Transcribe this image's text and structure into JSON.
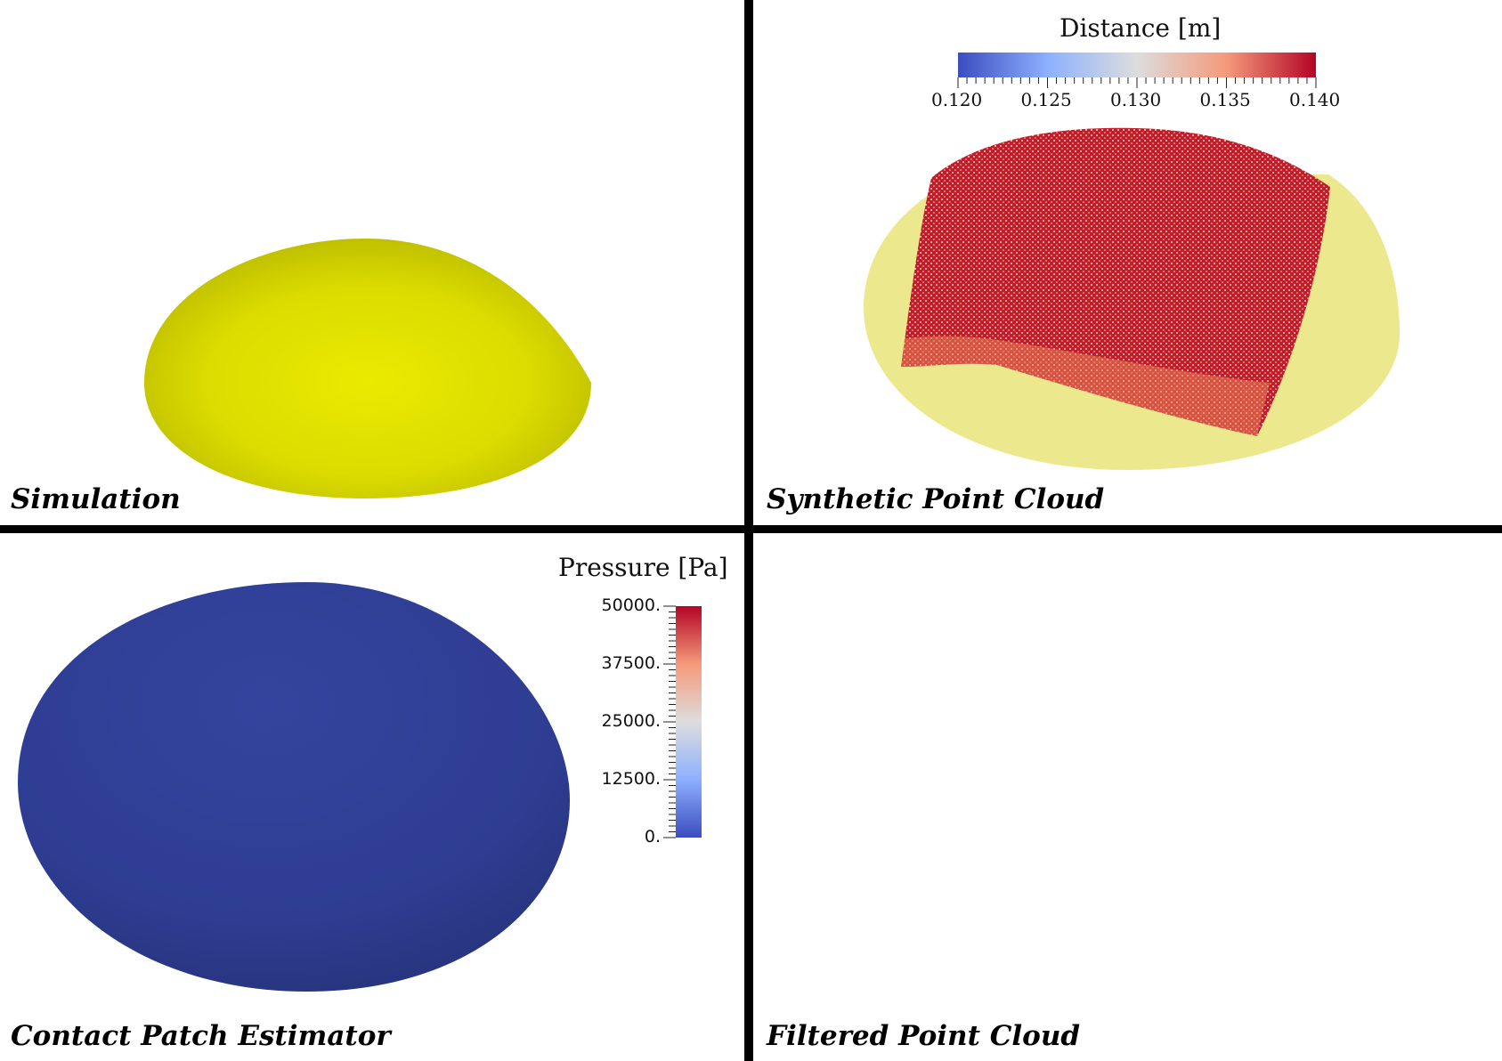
{
  "views": {
    "simulation": {
      "title": "Simulation"
    },
    "synthetic_point_cloud": {
      "title": "Synthetic Point Cloud"
    },
    "contact_patch_estimator": {
      "title": "Contact Patch Estimator"
    },
    "filtered_point_cloud": {
      "title": "Filtered Point Cloud"
    }
  },
  "distance_colorbar": {
    "title": "Distance [m]",
    "min": 0.12,
    "max": 0.14,
    "tick_labels": [
      "0.120",
      "0.125",
      "0.130",
      "0.135",
      "0.140"
    ],
    "colors": [
      "#3b4cc0",
      "#dddddd",
      "#b40426"
    ]
  },
  "pressure_colorbar": {
    "title": "Pressure [Pa]",
    "min": 0,
    "max": 50000,
    "tick_labels": [
      "50000.",
      "37500.",
      "25000.",
      "12500.",
      "0."
    ],
    "colors": [
      "#3b4cc0",
      "#dddddd",
      "#b40426"
    ]
  },
  "colors": {
    "divider": "#000000",
    "simulation_surface": "#e6e600",
    "translucent_surface": "#e8e47a",
    "contact_patch_surface": "#2f3e9e",
    "point_cloud_high": "#c0102a",
    "point_cloud_low": "#e8845a"
  }
}
